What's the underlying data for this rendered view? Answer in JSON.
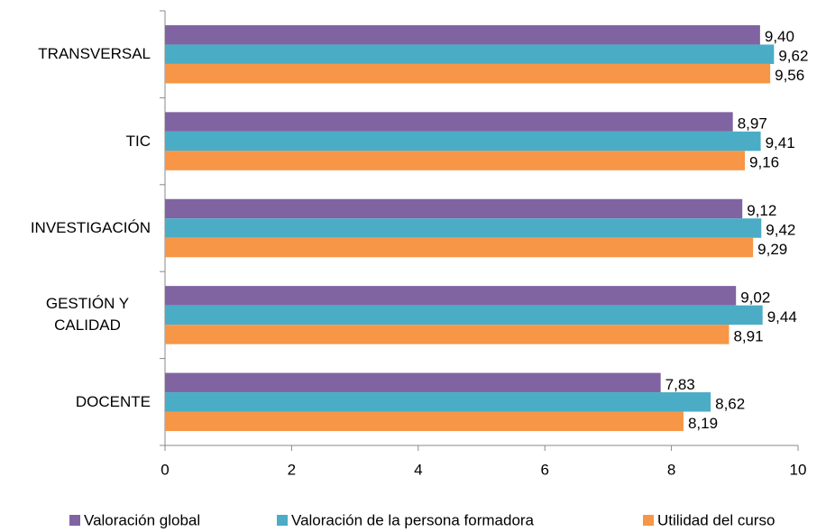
{
  "chart_data": {
    "type": "hbar",
    "categories": [
      "TRANSVERSAL",
      "TIC",
      "INVESTIGACIÓN",
      "GESTIÓN Y CALIDAD",
      "DOCENTE"
    ],
    "series": [
      {
        "name": "Valoración global",
        "color": "#8064a2",
        "values": [
          9.4,
          8.97,
          9.12,
          9.02,
          7.83
        ],
        "value_labels": [
          "9,40",
          "8,97",
          "9,12",
          "9,02",
          "7,83"
        ]
      },
      {
        "name": "Valoración de la persona formadora",
        "color": "#4bacc6",
        "values": [
          9.62,
          9.41,
          9.42,
          9.44,
          8.62
        ],
        "value_labels": [
          "9,62",
          "9,41",
          "9,42",
          "9,44",
          "8,62"
        ]
      },
      {
        "name": "Utilidad del curso",
        "color": "#f79646",
        "values": [
          9.56,
          9.16,
          9.29,
          8.91,
          8.19
        ],
        "value_labels": [
          "9,56",
          "9,16",
          "9,29",
          "8,91",
          "8,19"
        ]
      }
    ],
    "xlim": [
      0,
      10
    ],
    "xticks": [
      0,
      2,
      4,
      6,
      8,
      10
    ],
    "legend": "bottom"
  }
}
